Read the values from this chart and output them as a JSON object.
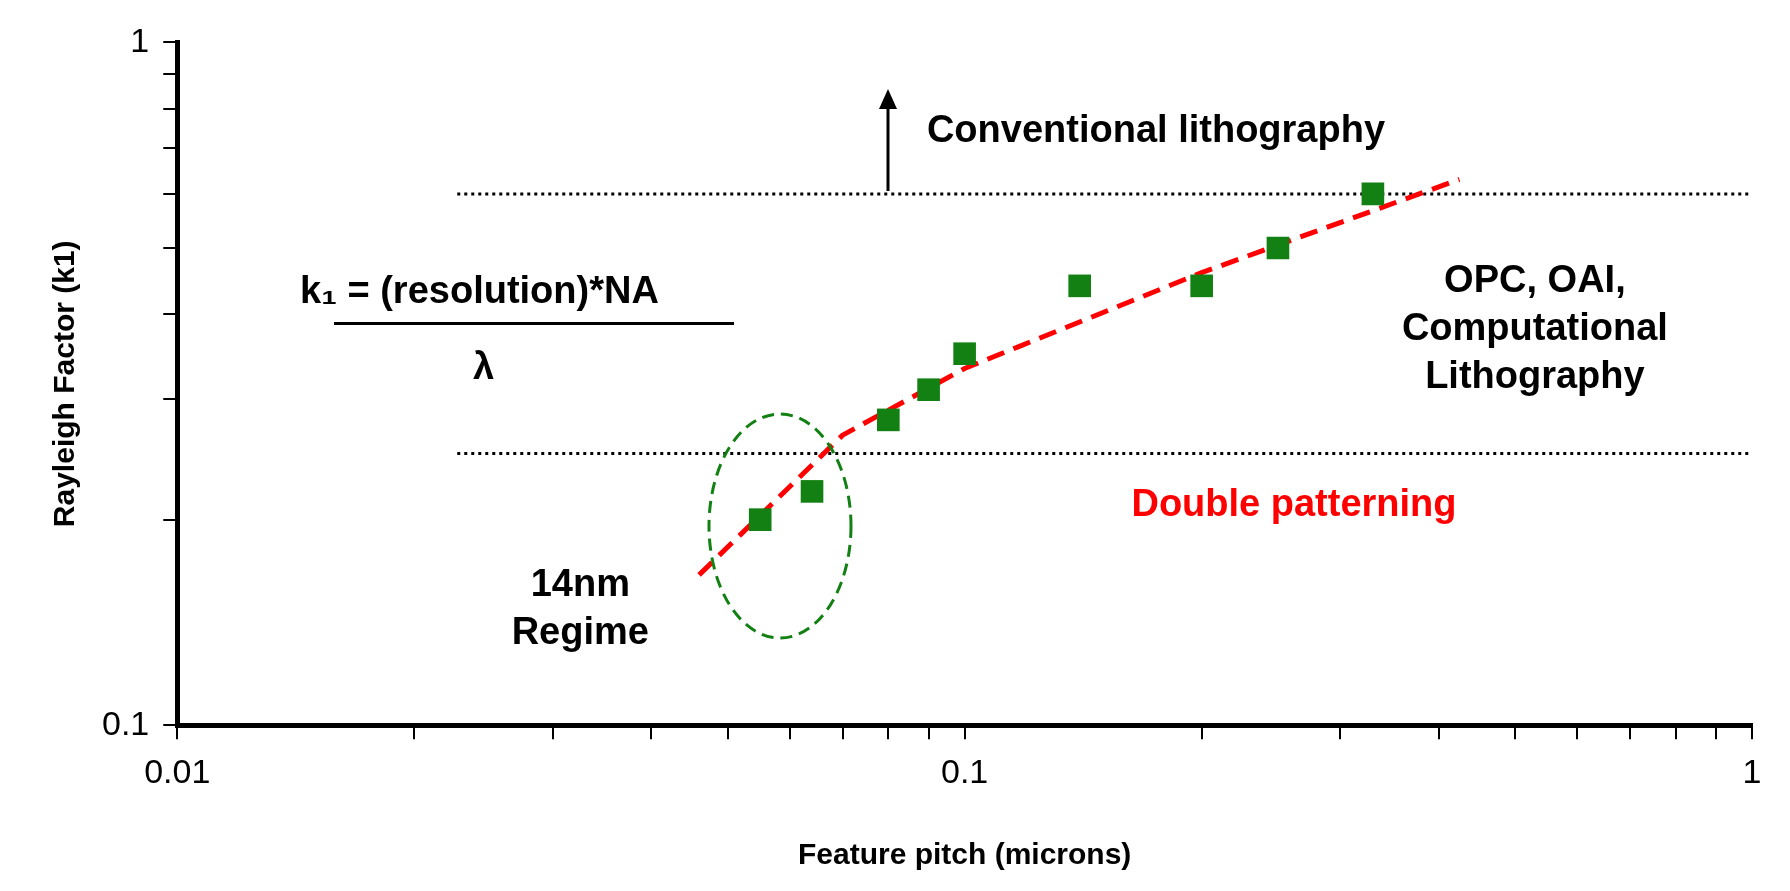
{
  "chart_data": {
    "type": "scatter",
    "xlabel": "Feature pitch (microns)",
    "ylabel": "Rayleigh Factor (k1)",
    "log": "xy",
    "xlim": [
      0.01,
      1
    ],
    "ylim": [
      0.1,
      1
    ],
    "xticks": [
      0.01,
      {
        "value": 0.02,
        "label": null
      },
      {
        "value": 0.03,
        "label": null
      },
      {
        "value": 0.04,
        "label": null
      },
      {
        "value": 0.05,
        "label": null
      },
      {
        "value": 0.06,
        "label": null
      },
      {
        "value": 0.07,
        "label": null
      },
      {
        "value": 0.08,
        "label": null
      },
      {
        "value": 0.09,
        "label": null
      },
      0.1,
      {
        "value": 0.2,
        "label": null
      },
      {
        "value": 0.3,
        "label": null
      },
      {
        "value": 0.4,
        "label": null
      },
      {
        "value": 0.5,
        "label": null
      },
      {
        "value": 0.6,
        "label": null
      },
      {
        "value": 0.7,
        "label": null
      },
      {
        "value": 0.8,
        "label": null
      },
      {
        "value": 0.9,
        "label": null
      },
      1
    ],
    "yticks": [
      0.1,
      {
        "value": 0.2,
        "label": null
      },
      {
        "value": 0.3,
        "label": null
      },
      {
        "value": 0.4,
        "label": null
      },
      {
        "value": 0.5,
        "label": null
      },
      {
        "value": 0.6,
        "label": null
      },
      {
        "value": 0.7,
        "label": null
      },
      {
        "value": 0.8,
        "label": null
      },
      {
        "value": 0.9,
        "label": null
      },
      1
    ],
    "grid": false,
    "legend": false,
    "series": [
      {
        "type": "scatter",
        "color": "#138013",
        "marker": "square",
        "x": [
          0.055,
          0.064,
          0.08,
          0.09,
          0.1,
          0.14,
          0.2,
          0.25,
          0.33
        ],
        "values": [
          0.2,
          0.22,
          0.28,
          0.31,
          0.35,
          0.44,
          0.44,
          0.5,
          0.6
        ]
      },
      {
        "type": "line",
        "color": "#ff0000",
        "line_style": "dashed",
        "marker": "none",
        "x": [
          0.046,
          0.07,
          0.1,
          0.2,
          0.425
        ],
        "values": [
          0.166,
          0.266,
          0.333,
          0.46,
          0.63
        ]
      }
    ],
    "ref_lines": [
      {
        "axis": "y",
        "value": 0.6,
        "color": "#000000",
        "line_style": "dotted"
      },
      {
        "axis": "y",
        "value": 0.25,
        "color": "#000000",
        "line_style": "dotted"
      }
    ],
    "annotations": [
      "Conventional lithography",
      "OPC, OAI,\nComputational\nLithography",
      "Double patterning",
      "14nm\nRegime",
      "k₁ = (resolution)*NA",
      "λ"
    ]
  }
}
